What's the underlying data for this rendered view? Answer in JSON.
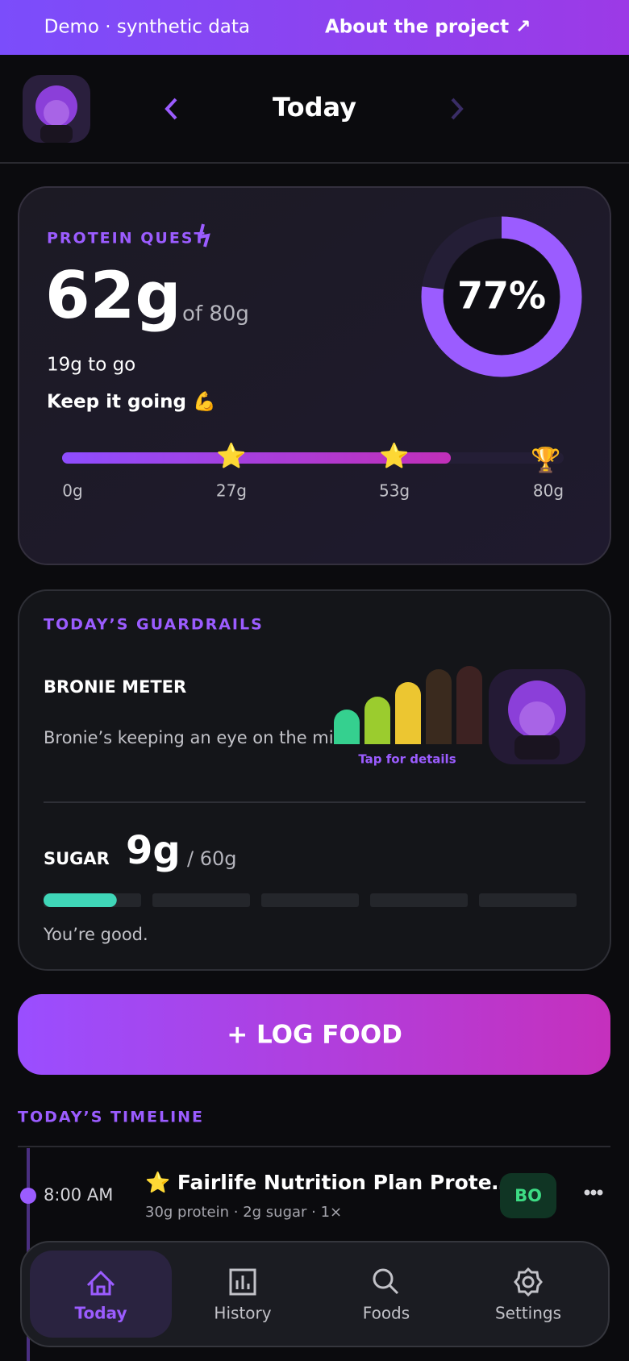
{
  "banner": {
    "text": "Demo · synthetic data",
    "link": "About the project ↗"
  },
  "header": {
    "title": "Today"
  },
  "protein": {
    "title": "PROTEIN QUEST",
    "current": {
      "value": 62,
      "label": "62g"
    },
    "goal": {
      "value": 80,
      "label": "of 80g"
    },
    "to_go": "19g to go",
    "message": "Keep it going 💪",
    "percent": {
      "value": 77,
      "label": "77%"
    },
    "milestones": [
      {
        "value": 0,
        "label": "0g"
      },
      {
        "value": 27,
        "label": "27g"
      },
      {
        "value": 53,
        "label": "53g"
      },
      {
        "value": 80,
        "label": "80g"
      }
    ]
  },
  "guardrails": {
    "title": "TODAY’S GUARDRAILS",
    "meter_title": "BRONIE METER",
    "meter_text": "Bronie’s keeping an eye on the mix.",
    "meter_link": "Tap for details",
    "sugar": {
      "label": "SUGAR",
      "current": {
        "value": 9,
        "label": "9g"
      },
      "limit": {
        "value": 60,
        "label": "/ 60g"
      },
      "status": "You’re good."
    }
  },
  "log_button": "+ LOG FOOD",
  "timeline": {
    "title": "TODAY’S TIMELINE",
    "entries": [
      {
        "time": "8:00 AM",
        "name": "⭐ Fairlife Nutrition Plan Prote…",
        "detail": "30g protein · 2g sugar · 1×",
        "badge": "BO"
      }
    ]
  },
  "nav": [
    {
      "label": "Today"
    },
    {
      "label": "History"
    },
    {
      "label": "Foods"
    },
    {
      "label": "Settings"
    }
  ]
}
